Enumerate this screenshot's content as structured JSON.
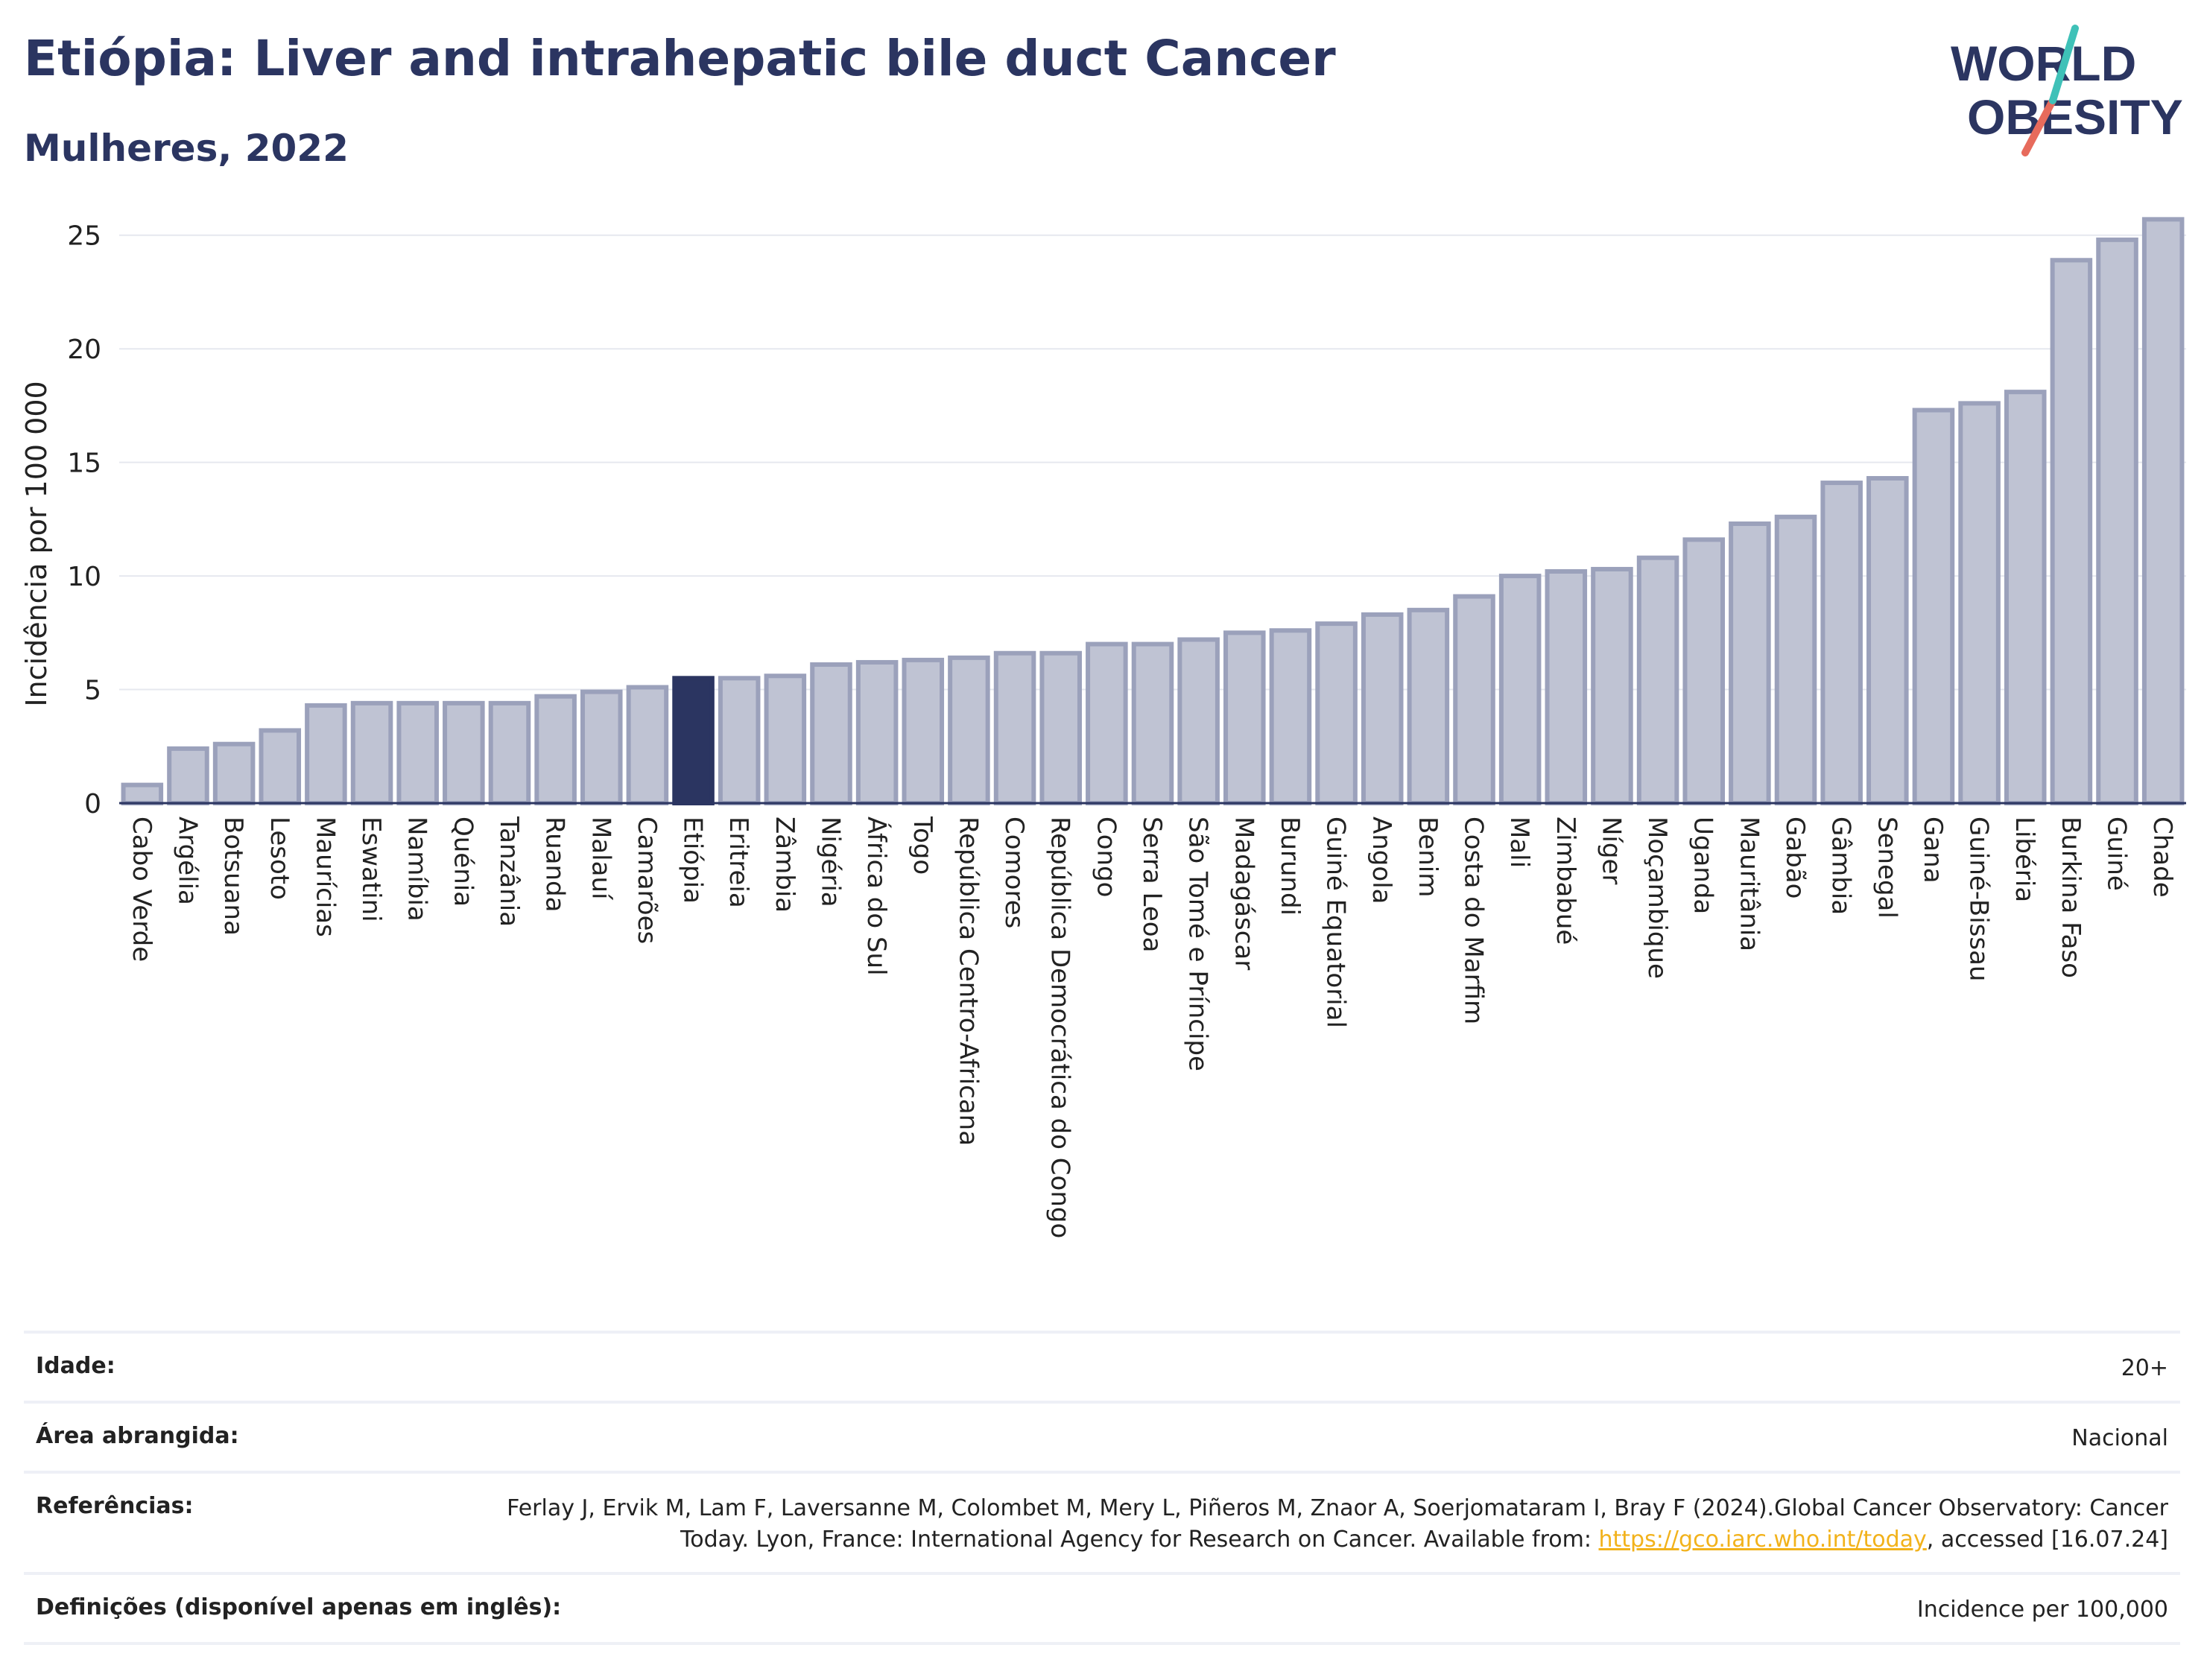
{
  "header": {
    "title": "Etiópia: Liver and intrahepatic bile duct Cancer",
    "subtitle": "Mulheres, 2022"
  },
  "logo": {
    "line1": "WORLD",
    "line2": "OBESITY",
    "icon": "world-obesity-logo"
  },
  "chart_data": {
    "type": "bar",
    "ylabel": "Incidência por 100 000",
    "xlabel": "",
    "ylim": [
      0,
      26.5
    ],
    "yticks": [
      0,
      5,
      10,
      15,
      20,
      25
    ],
    "grid": true,
    "highlight": "Etiópia",
    "colors": {
      "bar": "#bfc3d3",
      "bar_edge": "#9ba1bb",
      "highlight": "#2b3561"
    },
    "categories": [
      "Cabo Verde",
      "Argélia",
      "Botsuana",
      "Lesoto",
      "Maurícias",
      "Eswatini",
      "Namíbia",
      "Quénia",
      "Tanzânia",
      "Ruanda",
      "Malauí",
      "Camarões",
      "Etiópia",
      "Eritreia",
      "Zâmbia",
      "Nigéria",
      "África do Sul",
      "Togo",
      "República Centro-Africana",
      "Comores",
      "República Democrática do Congo",
      "Congo",
      "Serra Leoa",
      "São Tomé e Príncipe",
      "Madagáscar",
      "Burundi",
      "Guiné Equatorial",
      "Angola",
      "Benim",
      "Costa do Marfim",
      "Mali",
      "Zimbabué",
      "Níger",
      "Moçambique",
      "Uganda",
      "Mauritânia",
      "Gabão",
      "Gâmbia",
      "Senegal",
      "Gana",
      "Guiné-Bissau",
      "Libéria",
      "Burkina Faso",
      "Guiné",
      "Chade"
    ],
    "values": [
      0.8,
      2.4,
      2.6,
      3.2,
      4.3,
      4.4,
      4.4,
      4.4,
      4.4,
      4.7,
      4.9,
      5.1,
      5.5,
      5.5,
      5.6,
      6.1,
      6.2,
      6.3,
      6.4,
      6.6,
      6.6,
      7.0,
      7.0,
      7.2,
      7.5,
      7.6,
      7.9,
      8.3,
      8.5,
      9.1,
      10.0,
      10.2,
      10.3,
      10.8,
      11.6,
      12.3,
      12.6,
      14.1,
      14.3,
      17.3,
      17.6,
      18.1,
      23.9,
      24.8,
      25.7
    ]
  },
  "info": {
    "rows": [
      {
        "label": "Idade:",
        "value": "20+"
      },
      {
        "label": "Área abrangida:",
        "value": "Nacional"
      },
      {
        "label": "Referências:",
        "value": "Ferlay J, Ervik M, Lam F, Laversanne M, Colombet M, Mery L, Piñeros M, Znaor A, Soerjomataram I, Bray F (2024).Global Cancer Observatory: Cancer Today. Lyon, France: International Agency for Research on Cancer. Available from: ",
        "link": "https://gco.iarc.who.int/today",
        "suffix": ", accessed [16.07.24]"
      },
      {
        "label": "Definições (disponível apenas em inglês):",
        "value": "Incidence per 100,000"
      }
    ]
  }
}
